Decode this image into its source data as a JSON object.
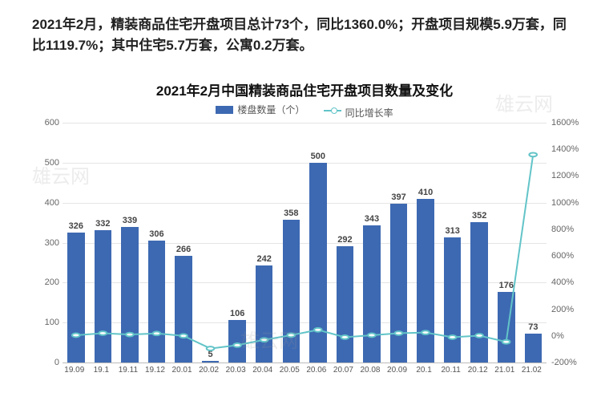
{
  "headline": "2021年2月，精装商品住宅开盘项目总计73个，同比1360.0%；开盘项目规模5.9万套，同比1119.7%；其中住宅5.7万套，公寓0.2万套。",
  "chart": {
    "type": "bar+line",
    "title": "2021年2月中国精装商品住宅开盘项目数量及变化",
    "legend_bar": "楼盘数量（个）",
    "legend_line": "同比增长率",
    "bar_color": "#3d69b2",
    "line_color": "#62c4c8",
    "grid_color": "#e5e5e5",
    "background_color": "#ffffff",
    "title_fontsize": 17,
    "label_fontsize": 11,
    "categories": [
      "19.09",
      "19.1",
      "19.11",
      "19.12",
      "20.01",
      "20.02",
      "20.03",
      "20.04",
      "20.05",
      "20.06",
      "20.07",
      "20.08",
      "20.09",
      "20.1",
      "20.11",
      "20.12",
      "21.01",
      "21.02"
    ],
    "bar_values": [
      326,
      332,
      339,
      306,
      266,
      5,
      106,
      242,
      358,
      500,
      292,
      343,
      397,
      410,
      313,
      352,
      176,
      73
    ],
    "line_values_pct": [
      5,
      20,
      10,
      18,
      0,
      -95,
      -70,
      -30,
      5,
      45,
      -10,
      5,
      20,
      25,
      -10,
      2,
      -45,
      1360
    ],
    "y_left": {
      "min": 0,
      "max": 600,
      "step": 100
    },
    "y_right": {
      "min": -200,
      "max": 1600,
      "step": 200
    }
  },
  "watermark_text": "雄云网"
}
